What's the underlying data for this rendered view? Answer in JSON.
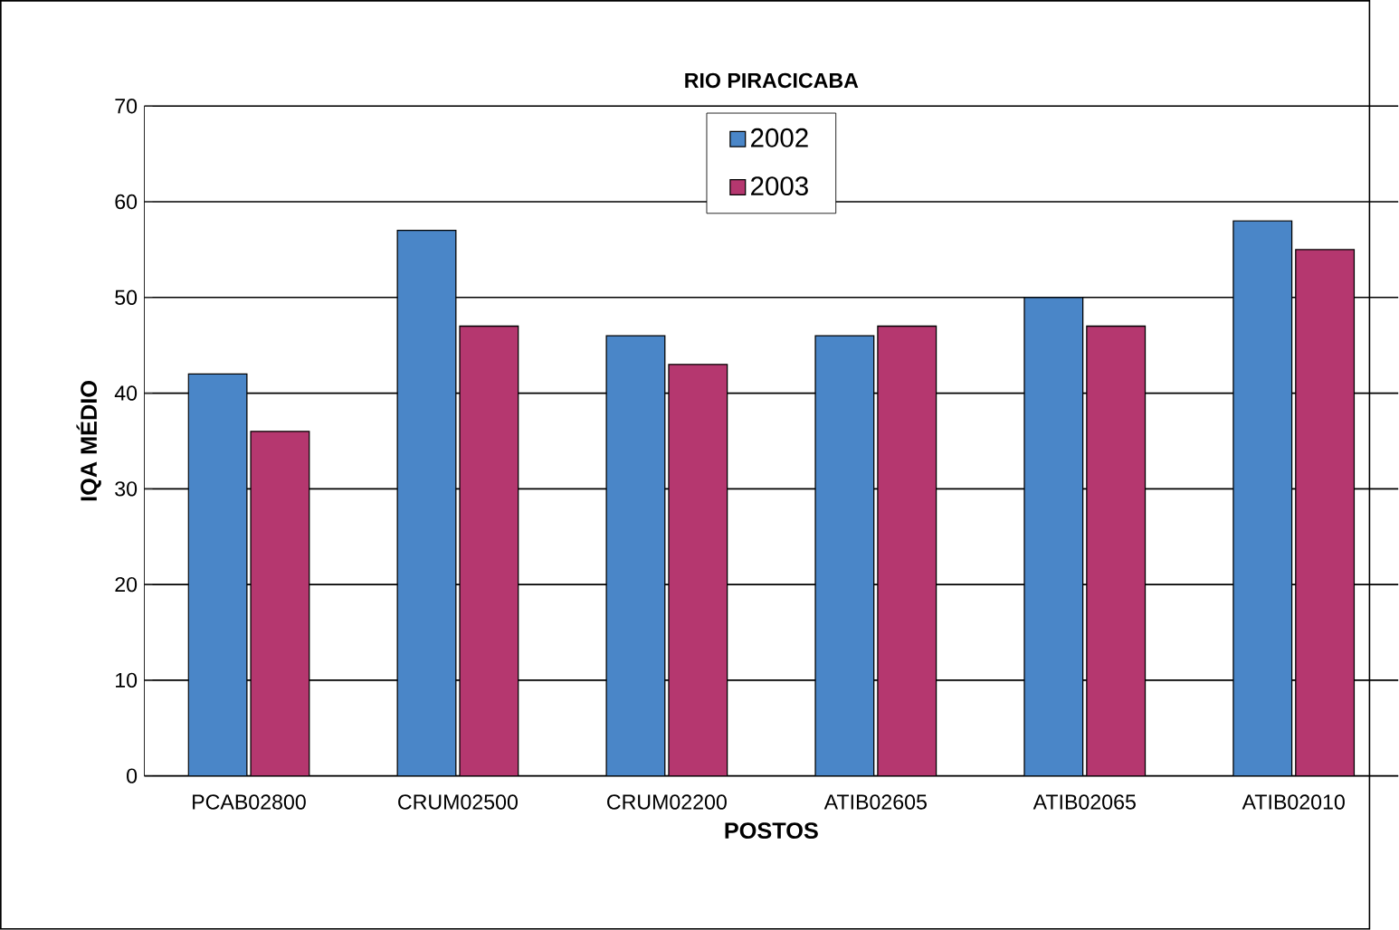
{
  "chart_data": {
    "type": "bar",
    "title": "RIO PIRACICABA",
    "xlabel": "POSTOS",
    "ylabel": "IQA MÉDIO",
    "categories": [
      "PCAB02800",
      "CRUM02500",
      "CRUM02200",
      "ATIB02605",
      "ATIB02065",
      "ATIB02010"
    ],
    "series": [
      {
        "name": "2002",
        "color": "#4a86c8",
        "values": [
          42,
          57,
          46,
          46,
          50,
          58
        ]
      },
      {
        "name": "2003",
        "color": "#b5376f",
        "values": [
          36,
          47,
          43,
          47,
          47,
          55
        ]
      }
    ],
    "ylim": [
      0,
      70
    ],
    "yticks": [
      0,
      10,
      20,
      30,
      40,
      50,
      60,
      70
    ],
    "grid": "y",
    "legend": "top"
  }
}
